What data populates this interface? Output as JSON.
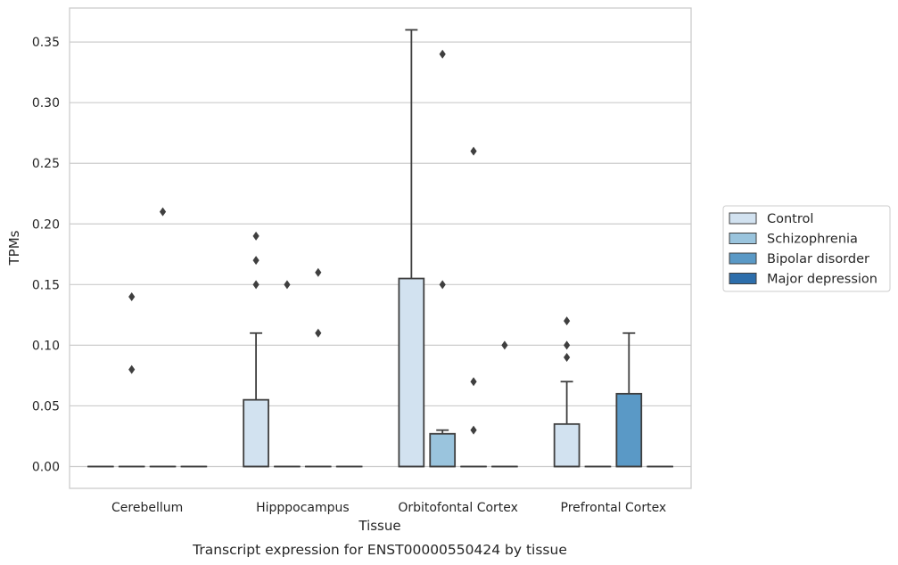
{
  "chart_data": {
    "type": "box",
    "caption": "Transcript expression for ENST00000550424 by tissue",
    "xlabel": "Tissue",
    "ylabel": "TPMs",
    "ylim": [
      -0.018,
      0.378
    ],
    "yticks": [
      "0.00",
      "0.05",
      "0.10",
      "0.15",
      "0.20",
      "0.25",
      "0.30",
      "0.35"
    ],
    "grid": true,
    "legend_position": "right",
    "categories": [
      "Cerebellum",
      "Hipppocampus",
      "Orbitofontal Cortex",
      "Prefrontal Cortex"
    ],
    "series": [
      {
        "name": "Control",
        "color": "#d2e2f0"
      },
      {
        "name": "Schizophrenia",
        "color": "#9ac4dd"
      },
      {
        "name": "Bipolar disorder",
        "color": "#5a99c6"
      },
      {
        "name": "Major depression",
        "color": "#2d6eab"
      }
    ],
    "boxes": [
      {
        "category": 0,
        "series": 0,
        "q1": 0,
        "median": 0,
        "q3": 0,
        "whisker_low": 0,
        "whisker_high": 0,
        "outliers": []
      },
      {
        "category": 0,
        "series": 1,
        "q1": 0,
        "median": 0,
        "q3": 0,
        "whisker_low": 0,
        "whisker_high": 0,
        "outliers": [
          0.14,
          0.08
        ]
      },
      {
        "category": 0,
        "series": 2,
        "q1": 0,
        "median": 0,
        "q3": 0,
        "whisker_low": 0,
        "whisker_high": 0,
        "outliers": [
          0.21
        ]
      },
      {
        "category": 0,
        "series": 3,
        "q1": 0,
        "median": 0,
        "q3": 0,
        "whisker_low": 0,
        "whisker_high": 0,
        "outliers": []
      },
      {
        "category": 1,
        "series": 0,
        "q1": 0,
        "median": 0,
        "q3": 0.055,
        "whisker_low": 0,
        "whisker_high": 0.11,
        "outliers": [
          0.19,
          0.17,
          0.15
        ]
      },
      {
        "category": 1,
        "series": 1,
        "q1": 0,
        "median": 0,
        "q3": 0,
        "whisker_low": 0,
        "whisker_high": 0,
        "outliers": [
          0.15
        ]
      },
      {
        "category": 1,
        "series": 2,
        "q1": 0,
        "median": 0,
        "q3": 0,
        "whisker_low": 0,
        "whisker_high": 0,
        "outliers": [
          0.16,
          0.11
        ]
      },
      {
        "category": 1,
        "series": 3,
        "q1": 0,
        "median": 0,
        "q3": 0,
        "whisker_low": 0,
        "whisker_high": 0,
        "outliers": []
      },
      {
        "category": 2,
        "series": 0,
        "q1": 0,
        "median": 0,
        "q3": 0.155,
        "whisker_low": 0,
        "whisker_high": 0.36,
        "outliers": []
      },
      {
        "category": 2,
        "series": 1,
        "q1": 0,
        "median": 0,
        "q3": 0.027,
        "whisker_low": 0,
        "whisker_high": 0.03,
        "outliers": [
          0.34,
          0.15
        ]
      },
      {
        "category": 2,
        "series": 2,
        "q1": 0,
        "median": 0,
        "q3": 0,
        "whisker_low": 0,
        "whisker_high": 0,
        "outliers": [
          0.26,
          0.07,
          0.03
        ]
      },
      {
        "category": 2,
        "series": 3,
        "q1": 0,
        "median": 0,
        "q3": 0,
        "whisker_low": 0,
        "whisker_high": 0,
        "outliers": [
          0.1
        ]
      },
      {
        "category": 3,
        "series": 0,
        "q1": 0,
        "median": 0,
        "q3": 0.035,
        "whisker_low": 0,
        "whisker_high": 0.07,
        "outliers": [
          0.12,
          0.1,
          0.09
        ]
      },
      {
        "category": 3,
        "series": 1,
        "q1": 0,
        "median": 0,
        "q3": 0,
        "whisker_low": 0,
        "whisker_high": 0,
        "outliers": []
      },
      {
        "category": 3,
        "series": 2,
        "q1": 0,
        "median": 0,
        "q3": 0.06,
        "whisker_low": 0,
        "whisker_high": 0.11,
        "outliers": []
      },
      {
        "category": 3,
        "series": 3,
        "q1": 0,
        "median": 0,
        "q3": 0,
        "whisker_low": 0,
        "whisker_high": 0,
        "outliers": []
      }
    ]
  }
}
